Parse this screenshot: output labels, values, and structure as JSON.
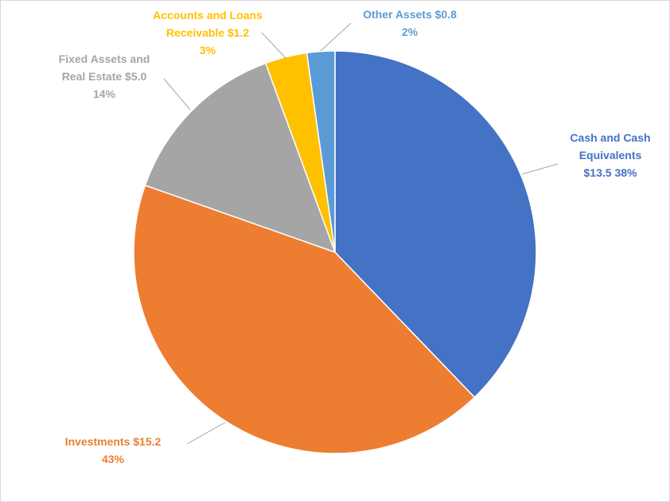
{
  "chart_data": {
    "type": "pie",
    "title": "",
    "units": "$",
    "slices": [
      {
        "key": "cash",
        "name": "Cash and Cash Equivalents",
        "value": 13.5,
        "percent": 38,
        "color": "#4472C4",
        "label_lines": [
          "Cash and Cash",
          "Equivalents",
          "$13.5  38%"
        ]
      },
      {
        "key": "investments",
        "name": "Investments",
        "value": 15.2,
        "percent": 43,
        "color": "#ED7D31",
        "label_lines": [
          "Investments  $15.2",
          "43%"
        ]
      },
      {
        "key": "fixed",
        "name": "Fixed Assets and Real Estate",
        "value": 5.0,
        "percent": 14,
        "color": "#A5A5A5",
        "label_lines": [
          "Fixed Assets and",
          "Real Estate  $5.0",
          "14%"
        ]
      },
      {
        "key": "receivable",
        "name": "Accounts and Loans Receivable",
        "value": 1.2,
        "percent": 3,
        "color": "#FFC000",
        "label_lines": [
          "Accounts and Loans",
          "Receivable  $1.2",
          "3%"
        ]
      },
      {
        "key": "other",
        "name": "Other Assets",
        "value": 0.8,
        "percent": 2,
        "color": "#5B9BD5",
        "label_lines": [
          "Other Assets  $0.8",
          "2%"
        ]
      }
    ]
  }
}
